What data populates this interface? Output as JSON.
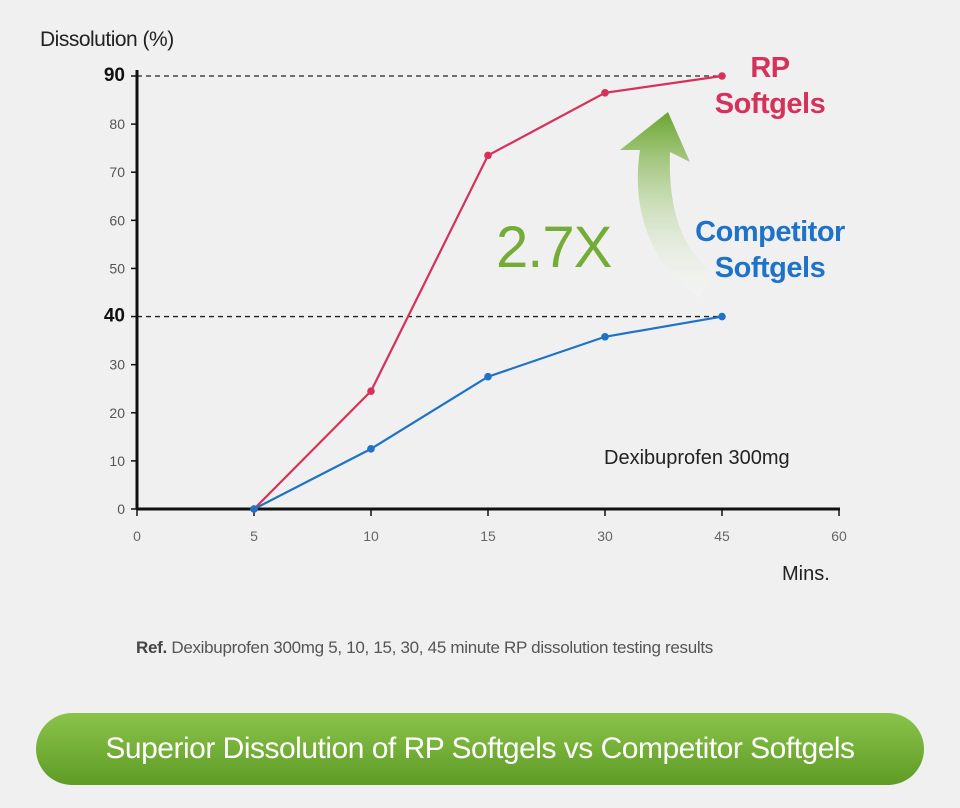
{
  "chart_data": {
    "type": "line",
    "ylabel": "Dissolution (%)",
    "xlabel": "Mins.",
    "x_ticks": [
      "0",
      "5",
      "10",
      "15",
      "30",
      "45",
      "60"
    ],
    "y_ticks": [
      "0",
      "10",
      "20",
      "30",
      "40",
      "50",
      "60",
      "70",
      "80",
      "90"
    ],
    "ylim": [
      0,
      90
    ],
    "highlight_y": [
      "40",
      "90"
    ],
    "x": [
      "5",
      "10",
      "15",
      "30",
      "45"
    ],
    "series": [
      {
        "name": "RP Softgels",
        "color": "#d6315a",
        "values": [
          0,
          24.5,
          73.5,
          86.5,
          90
        ]
      },
      {
        "name": "Competitor Softgels",
        "color": "#1e73c8",
        "values": [
          0,
          12.5,
          27.5,
          35.8,
          40
        ]
      }
    ],
    "annotation": "2.7X",
    "product_note": "Dexibuprofen 300mg"
  },
  "labels": {
    "rp_line1": "RP",
    "rp_line2": "Softgels",
    "comp_line1": "Competitor",
    "comp_line2": "Softgels"
  },
  "footer": {
    "ref_prefix": "Ref.",
    "ref_text": " Dexibuprofen 300mg 5, 10, 15, 30, 45 minute RP dissolution testing results",
    "banner": "Superior Dissolution of RP Softgels vs Competitor Softgels"
  }
}
